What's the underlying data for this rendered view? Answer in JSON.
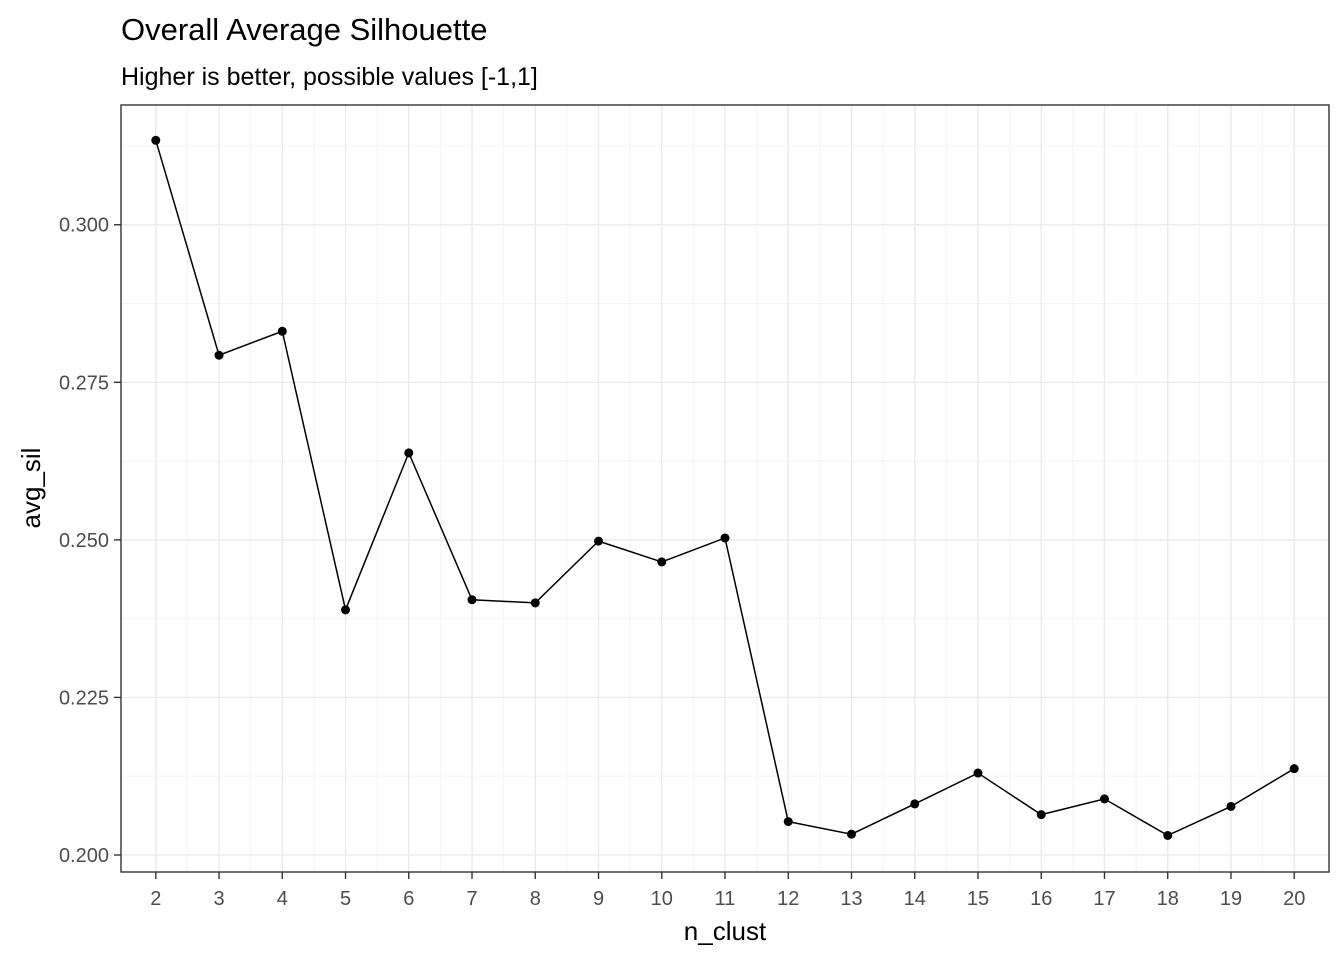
{
  "chart_data": {
    "type": "line",
    "title": "Overall Average Silhouette",
    "subtitle": "Higher is better, possible values [-1,1]",
    "xlabel": "n_clust",
    "ylabel": "avg_sil",
    "x": [
      2,
      3,
      4,
      5,
      6,
      7,
      8,
      9,
      10,
      11,
      12,
      13,
      14,
      15,
      16,
      17,
      18,
      19,
      20
    ],
    "series": [
      {
        "values": [
          0.3134,
          0.2793,
          0.2831,
          0.2389,
          0.2638,
          0.2405,
          0.24,
          0.2498,
          0.2465,
          0.2503,
          0.2053,
          0.2033,
          0.2081,
          0.213,
          0.2064,
          0.2089,
          0.2031,
          0.2077,
          0.2137
        ]
      }
    ],
    "xticks": [
      "2",
      "3",
      "4",
      "5",
      "6",
      "7",
      "8",
      "9",
      "10",
      "11",
      "12",
      "13",
      "14",
      "15",
      "16",
      "17",
      "18",
      "19",
      "20"
    ],
    "yticks": [
      "0.200",
      "0.225",
      "0.250",
      "0.275",
      "0.300"
    ],
    "ytick_values": [
      0.2,
      0.225,
      0.25,
      0.275,
      0.3
    ],
    "xlim": [
      1.45,
      20.55
    ],
    "ylim": [
      0.1973,
      0.319
    ],
    "grid": true,
    "legend": "none",
    "colors": {
      "line": "#000000",
      "point": "#000000",
      "grid_major": "#ebebeb",
      "grid_minor": "#f5f5f5",
      "panel_border": "#333333",
      "tick_text": "#4d4d4d"
    }
  }
}
